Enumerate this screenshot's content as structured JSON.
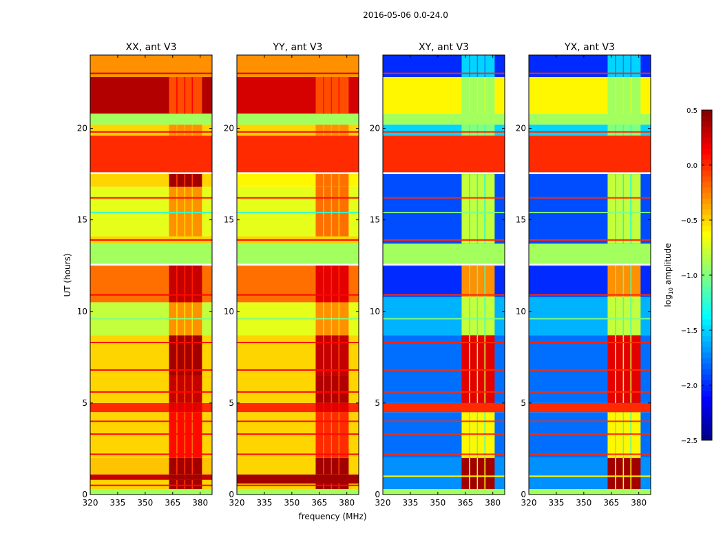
{
  "chart_data": {
    "type": "heatmap",
    "title": "2016-05-06 0.0-24.0",
    "xlabel": "frequency (MHz)",
    "ylabel": "UT (hours)",
    "xlim": [
      320,
      386.5
    ],
    "ylim": [
      0,
      24
    ],
    "xticks": [
      "320",
      "335",
      "350",
      "365",
      "380"
    ],
    "xtick_values": [
      320,
      335,
      350,
      365,
      380
    ],
    "yticks": [
      "0",
      "5",
      "10",
      "15",
      "20"
    ],
    "ytick_values": [
      0,
      5,
      10,
      15,
      20
    ],
    "colorbar": {
      "label_main": "log",
      "label_sub": "10",
      "label_rest": " amplitude",
      "range": [
        -2.5,
        0.5
      ],
      "ticks": [
        "0.5",
        "0.0",
        "−0.5",
        "−1.0",
        "−1.5",
        "−2.0",
        "−2.5"
      ],
      "tick_values": [
        0.5,
        0.0,
        -0.5,
        -1.0,
        -1.5,
        -2.0,
        -2.5
      ],
      "colormap": "jet"
    },
    "high_band_mhz": [
      363,
      381
    ],
    "high_band_gaps_mhz": [
      [
        367,
        367.6
      ],
      [
        371.3,
        371.9
      ],
      [
        375.4,
        376.0
      ]
    ],
    "panels": [
      {
        "title": "XX, ant V3",
        "segments": [
          [
            0,
            0.3,
            -0.9,
            -0.9
          ],
          [
            0.3,
            0.8,
            -0.5,
            0.4
          ],
          [
            0.8,
            1.1,
            0.3,
            0.4
          ],
          [
            1.1,
            2,
            -0.45,
            0.4
          ],
          [
            2,
            4.5,
            -0.5,
            0.1
          ],
          [
            4.5,
            5,
            0.0,
            0.2
          ],
          [
            5,
            6.5,
            -0.5,
            0.3
          ],
          [
            6.5,
            8.7,
            -0.5,
            0.4
          ],
          [
            8.7,
            10.5,
            -0.8,
            -0.3
          ],
          [
            10.5,
            12.5,
            -0.2,
            0.3
          ],
          [
            12.6,
            13.7,
            -0.9,
            -0.9
          ],
          [
            13.7,
            14.1,
            -0.5,
            -0.5
          ],
          [
            14.1,
            16.8,
            -0.7,
            -0.3
          ],
          [
            16.8,
            17.5,
            -0.5,
            0.4
          ],
          [
            17.6,
            19.6,
            0.0,
            0.0
          ],
          [
            19.6,
            20.2,
            -0.5,
            -0.3
          ],
          [
            20.2,
            20.8,
            -0.9,
            -0.9
          ],
          [
            20.8,
            22.8,
            0.35,
            -0.1
          ],
          [
            22.8,
            24,
            -0.3,
            -0.3
          ]
        ],
        "lines": [
          [
            0.5,
            0.1
          ],
          [
            2.2,
            0.1
          ],
          [
            3.3,
            0.1
          ],
          [
            4.0,
            0.1
          ],
          [
            5.6,
            0.1
          ],
          [
            6.8,
            0.1
          ],
          [
            8.3,
            0.1
          ],
          [
            9.6,
            -1.0
          ],
          [
            10.9,
            0.1
          ],
          [
            13.9,
            0.1
          ],
          [
            15.4,
            -1.2
          ],
          [
            16.2,
            0.1
          ],
          [
            19.8,
            0.1
          ],
          [
            23.0,
            0.2
          ]
        ]
      },
      {
        "title": "YY, ant V3",
        "segments": [
          [
            0,
            0.3,
            -0.9,
            -0.9
          ],
          [
            0.3,
            0.6,
            -0.5,
            0.4
          ],
          [
            0.6,
            1.1,
            0.4,
            0.4
          ],
          [
            1.1,
            2,
            -0.5,
            0.4
          ],
          [
            2,
            4.5,
            -0.5,
            0.0
          ],
          [
            4.5,
            5,
            0.0,
            0.2
          ],
          [
            5,
            6.5,
            -0.5,
            0.35
          ],
          [
            6.5,
            8.7,
            -0.5,
            0.3
          ],
          [
            8.7,
            10.5,
            -0.7,
            -0.3
          ],
          [
            10.5,
            12.5,
            -0.2,
            0.2
          ],
          [
            12.6,
            13.7,
            -0.9,
            -0.9
          ],
          [
            13.7,
            14.1,
            -0.5,
            -0.5
          ],
          [
            14.1,
            16.8,
            -0.7,
            -0.2
          ],
          [
            16.8,
            17.5,
            -0.6,
            -0.2
          ],
          [
            17.6,
            19.6,
            0.0,
            0.0
          ],
          [
            19.6,
            20.2,
            -0.5,
            -0.3
          ],
          [
            20.2,
            20.8,
            -0.9,
            -0.9
          ],
          [
            20.8,
            22.8,
            0.25,
            -0.1
          ],
          [
            22.8,
            24,
            -0.3,
            -0.3
          ]
        ],
        "lines": [
          [
            0.5,
            0.1
          ],
          [
            2.2,
            0.1
          ],
          [
            3.3,
            0.1
          ],
          [
            4.0,
            0.1
          ],
          [
            5.6,
            0.1
          ],
          [
            6.8,
            0.1
          ],
          [
            8.3,
            0.1
          ],
          [
            9.6,
            -1.0
          ],
          [
            10.9,
            0.1
          ],
          [
            13.9,
            0.1
          ],
          [
            15.4,
            -1.2
          ],
          [
            16.2,
            0.1
          ],
          [
            19.8,
            0.1
          ],
          [
            23.0,
            0.2
          ]
        ]
      },
      {
        "title": "XY, ant V3",
        "segments": [
          [
            0,
            0.3,
            -0.9,
            -0.9
          ],
          [
            0.3,
            2,
            -1.7,
            0.4
          ],
          [
            2,
            4.5,
            -1.8,
            -0.6
          ],
          [
            4.5,
            5,
            0.0,
            0.0
          ],
          [
            5,
            8.7,
            -1.8,
            0.2
          ],
          [
            8.7,
            10.8,
            -1.6,
            -0.8
          ],
          [
            10.8,
            12.5,
            -2.0,
            -0.3
          ],
          [
            12.6,
            13.7,
            -0.9,
            -0.9
          ],
          [
            13.7,
            17.5,
            -1.9,
            -0.8
          ],
          [
            17.6,
            19.6,
            0.0,
            0.0
          ],
          [
            19.6,
            20.2,
            -1.5,
            -1.0
          ],
          [
            20.2,
            20.8,
            -0.9,
            -0.9
          ],
          [
            20.8,
            22.8,
            -0.6,
            -0.9
          ],
          [
            22.8,
            24,
            -2.0,
            -1.5
          ]
        ],
        "lines": [
          [
            1.0,
            -0.6
          ],
          [
            2.2,
            0.0
          ],
          [
            3.3,
            0.0
          ],
          [
            4.0,
            0.0
          ],
          [
            5.6,
            0.0
          ],
          [
            6.8,
            0.0
          ],
          [
            8.3,
            0.0
          ],
          [
            9.6,
            -1.0
          ],
          [
            10.9,
            0.0
          ],
          [
            13.9,
            0.0
          ],
          [
            15.4,
            -1.0
          ],
          [
            16.2,
            0.0
          ],
          [
            19.8,
            0.0
          ],
          [
            23.0,
            0.0
          ]
        ]
      },
      {
        "title": "YX, ant V3",
        "segments": [
          [
            0,
            0.3,
            -0.9,
            -0.9
          ],
          [
            0.3,
            2,
            -1.7,
            0.4
          ],
          [
            2,
            4.5,
            -1.8,
            -0.6
          ],
          [
            4.5,
            5,
            0.0,
            0.0
          ],
          [
            5,
            8.7,
            -1.8,
            0.2
          ],
          [
            8.7,
            10.8,
            -1.6,
            -0.8
          ],
          [
            10.8,
            12.5,
            -2.0,
            -0.3
          ],
          [
            12.6,
            13.7,
            -0.9,
            -0.9
          ],
          [
            13.7,
            17.5,
            -1.9,
            -0.8
          ],
          [
            17.6,
            19.6,
            0.0,
            0.0
          ],
          [
            19.6,
            20.2,
            -1.5,
            -1.0
          ],
          [
            20.2,
            20.8,
            -0.9,
            -0.9
          ],
          [
            20.8,
            22.8,
            -0.6,
            -0.9
          ],
          [
            22.8,
            24,
            -2.0,
            -1.5
          ]
        ],
        "lines": [
          [
            1.0,
            -0.6
          ],
          [
            2.2,
            0.0
          ],
          [
            3.3,
            0.0
          ],
          [
            4.0,
            0.0
          ],
          [
            5.6,
            0.0
          ],
          [
            6.8,
            0.0
          ],
          [
            8.3,
            0.0
          ],
          [
            9.6,
            -1.0
          ],
          [
            10.9,
            0.0
          ],
          [
            13.9,
            0.0
          ],
          [
            15.4,
            -1.0
          ],
          [
            16.2,
            0.0
          ],
          [
            19.8,
            0.0
          ],
          [
            23.0,
            0.0
          ]
        ]
      }
    ]
  }
}
